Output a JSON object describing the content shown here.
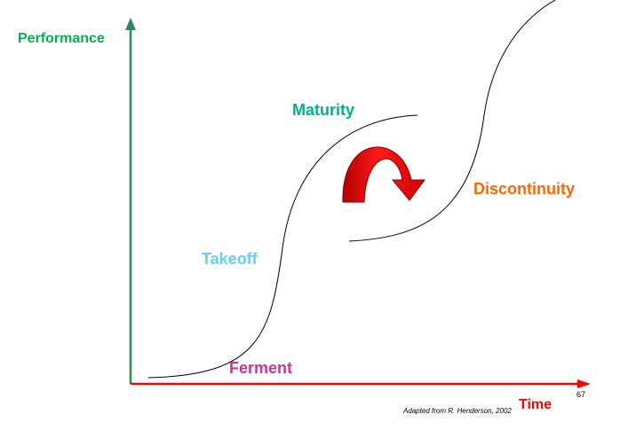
{
  "diagram": {
    "y_axis_label": "Performance",
    "x_axis_label": "Time",
    "stages": {
      "ferment": "Ferment",
      "takeoff": "Takeoff",
      "maturity": "Maturity",
      "discontinuity": "Discontinuity"
    },
    "source_note": "Adapted from R. Henderson, 2002",
    "page_number": "67"
  },
  "colors": {
    "y_axis": "#2e8b57",
    "x_axis": "#ff0000",
    "y_label": "#00b050",
    "x_label": "#ff0000",
    "maturity": "#00b08a",
    "discontinuity": "#ff6600",
    "takeoff": "#66ccff",
    "ferment": "#cc3399",
    "arrow": "#e00000",
    "curve": "#000000"
  }
}
